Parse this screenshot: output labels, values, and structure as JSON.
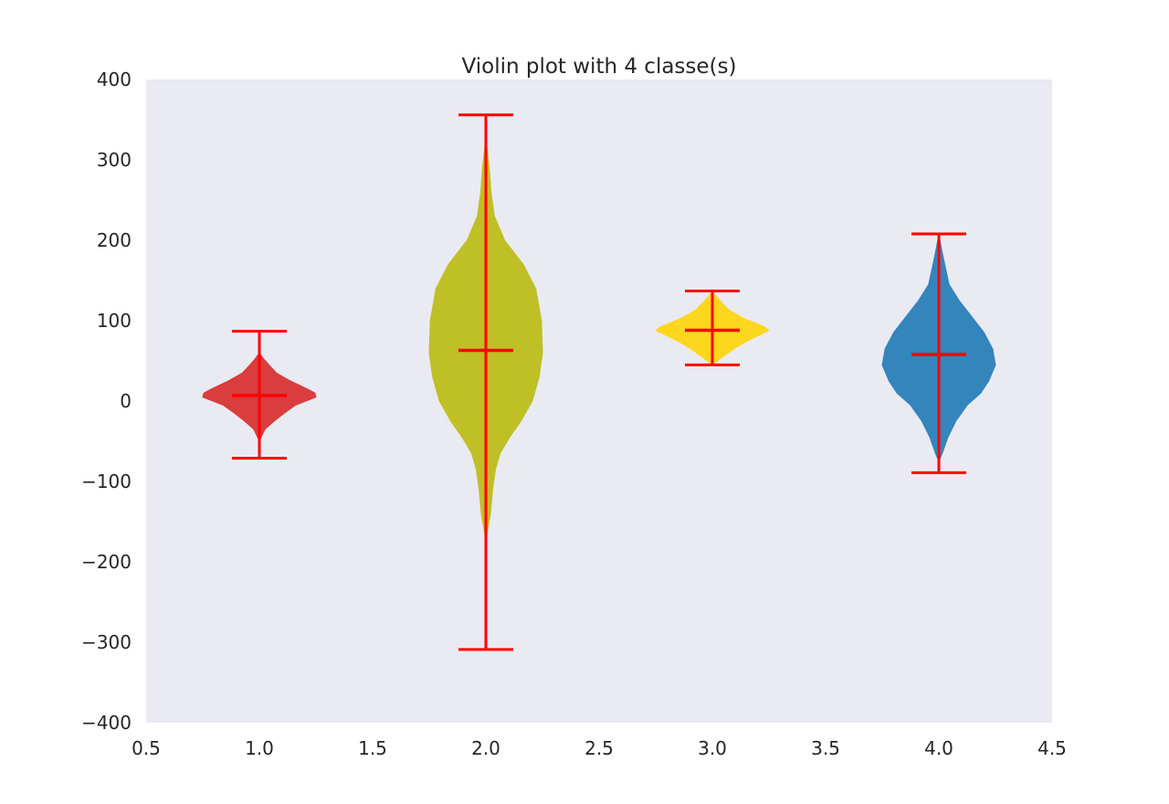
{
  "chart_data": {
    "type": "violin",
    "title": "Violin plot with 4 classe(s)",
    "xlabel": "",
    "ylabel": "",
    "xlim": [
      0.5,
      4.5
    ],
    "ylim": [
      -400,
      400
    ],
    "x_ticks": [
      "0.5",
      "1.0",
      "1.5",
      "2.0",
      "2.5",
      "3.0",
      "3.5",
      "4.0",
      "4.5"
    ],
    "y_ticks": [
      "400",
      "300",
      "200",
      "100",
      "0",
      "−100",
      "−200",
      "−300",
      "−400"
    ],
    "x_tick_values": [
      0.5,
      1.0,
      1.5,
      2.0,
      2.5,
      3.0,
      3.5,
      4.0,
      4.5
    ],
    "y_tick_values": [
      400,
      300,
      200,
      100,
      0,
      -100,
      -200,
      -300,
      -400
    ],
    "grid": false,
    "background_color": "#eaeaf2",
    "line_color": "#ff0000",
    "violins": [
      {
        "position": 1,
        "color": "#d93d3d",
        "min": -71,
        "max": 87,
        "mean": 7,
        "profile": [
          [
            -71,
            0.0
          ],
          [
            -50,
            0.0
          ],
          [
            -45,
            0.03
          ],
          [
            -35,
            0.1
          ],
          [
            -25,
            0.26
          ],
          [
            -15,
            0.44
          ],
          [
            -5,
            0.64
          ],
          [
            5,
            1.0
          ],
          [
            10,
            0.98
          ],
          [
            15,
            0.85
          ],
          [
            25,
            0.55
          ],
          [
            35,
            0.3
          ],
          [
            45,
            0.17
          ],
          [
            52,
            0.08
          ],
          [
            58,
            0.02
          ],
          [
            60,
            0.0
          ],
          [
            87,
            0.0
          ]
        ]
      },
      {
        "position": 2,
        "color": "#bfbf26",
        "min": -309,
        "max": 356,
        "mean": 63,
        "profile": [
          [
            -309,
            0.0
          ],
          [
            -190,
            0.0
          ],
          [
            -165,
            0.02
          ],
          [
            -140,
            0.08
          ],
          [
            -110,
            0.12
          ],
          [
            -85,
            0.17
          ],
          [
            -65,
            0.25
          ],
          [
            -45,
            0.42
          ],
          [
            -25,
            0.62
          ],
          [
            0,
            0.82
          ],
          [
            30,
            0.94
          ],
          [
            60,
            1.0
          ],
          [
            100,
            0.98
          ],
          [
            140,
            0.88
          ],
          [
            170,
            0.66
          ],
          [
            200,
            0.33
          ],
          [
            230,
            0.15
          ],
          [
            260,
            0.09
          ],
          [
            290,
            0.06
          ],
          [
            315,
            0.02
          ],
          [
            330,
            0.0
          ],
          [
            356,
            0.0
          ]
        ]
      },
      {
        "position": 3,
        "color": "#fcd71e",
        "min": 45,
        "max": 137,
        "mean": 88,
        "profile": [
          [
            45,
            0.0
          ],
          [
            48,
            0.05
          ],
          [
            55,
            0.18
          ],
          [
            65,
            0.38
          ],
          [
            75,
            0.62
          ],
          [
            83,
            0.85
          ],
          [
            88,
            1.0
          ],
          [
            93,
            0.9
          ],
          [
            103,
            0.55
          ],
          [
            113,
            0.3
          ],
          [
            123,
            0.16
          ],
          [
            131,
            0.06
          ],
          [
            135,
            0.0
          ],
          [
            137,
            0.0
          ]
        ]
      },
      {
        "position": 4,
        "color": "#3385bc",
        "min": -89,
        "max": 208,
        "mean": 58,
        "profile": [
          [
            -89,
            0.0
          ],
          [
            -75,
            0.0
          ],
          [
            -65,
            0.06
          ],
          [
            -45,
            0.16
          ],
          [
            -25,
            0.3
          ],
          [
            -5,
            0.5
          ],
          [
            10,
            0.74
          ],
          [
            25,
            0.88
          ],
          [
            45,
            1.0
          ],
          [
            65,
            0.95
          ],
          [
            85,
            0.8
          ],
          [
            105,
            0.58
          ],
          [
            125,
            0.36
          ],
          [
            145,
            0.18
          ],
          [
            165,
            0.12
          ],
          [
            185,
            0.06
          ],
          [
            200,
            0.02
          ],
          [
            205,
            0.0
          ],
          [
            208,
            0.0
          ]
        ]
      }
    ]
  }
}
